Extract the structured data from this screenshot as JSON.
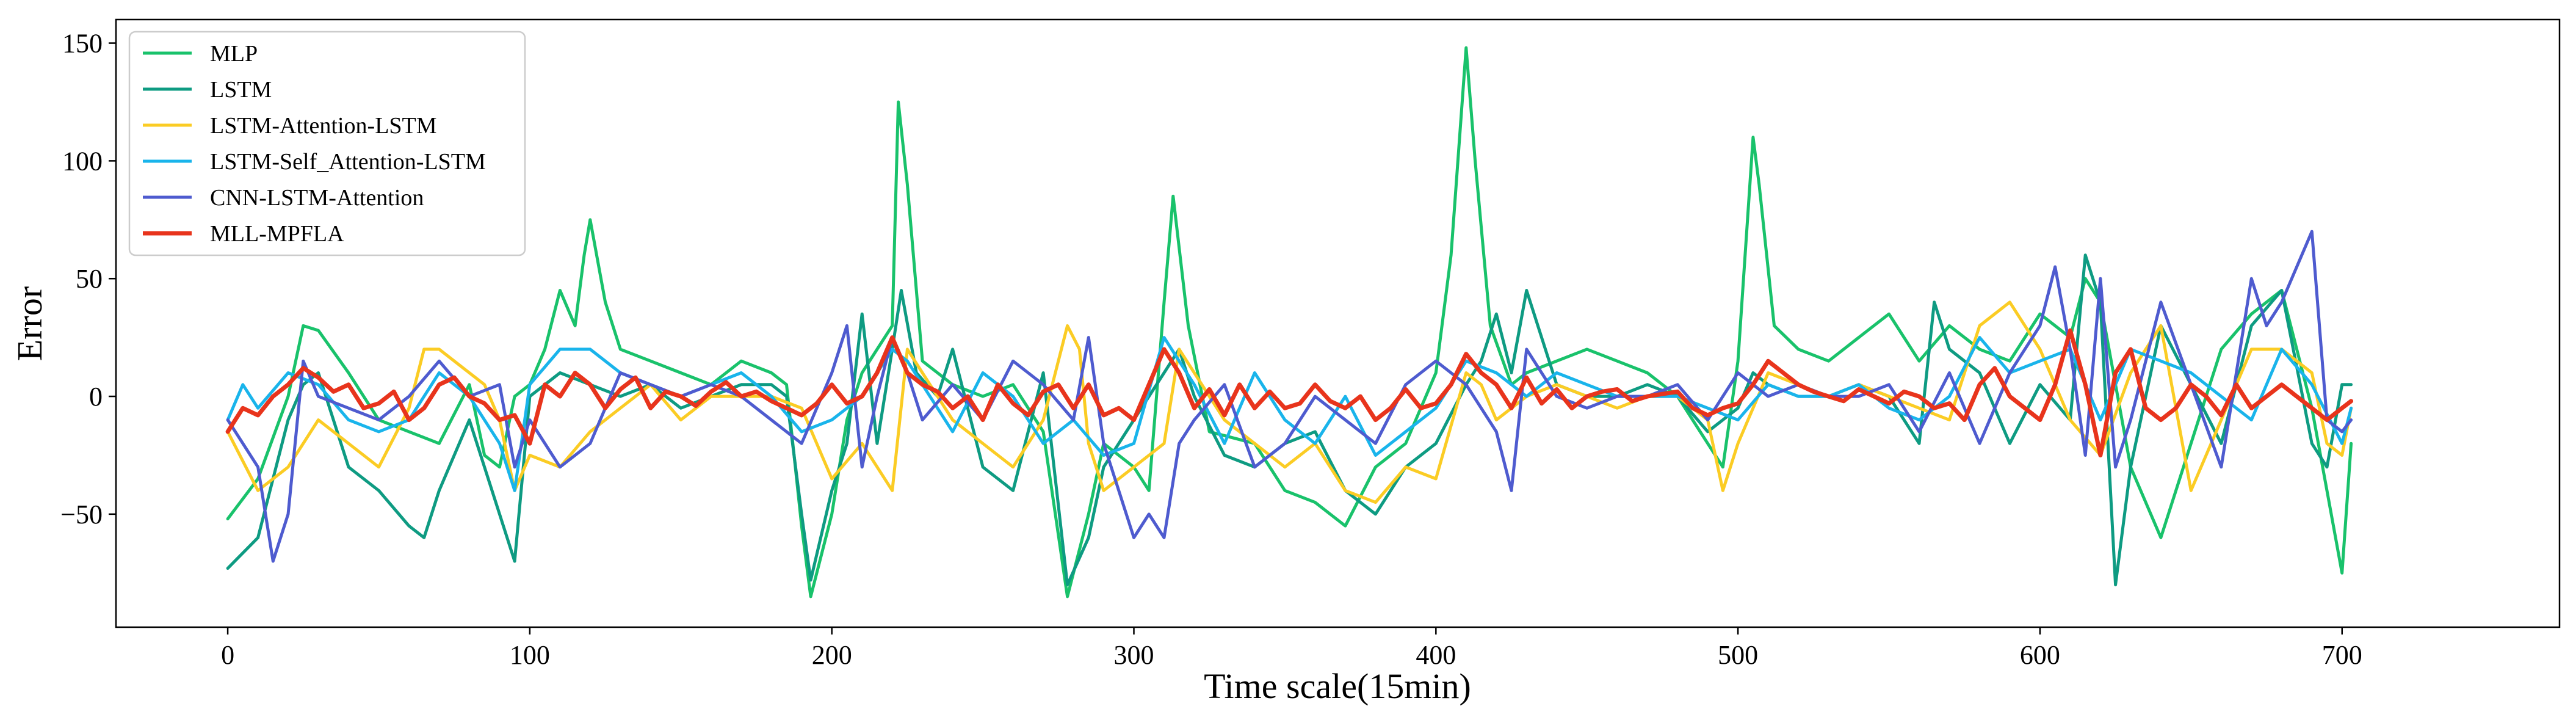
{
  "chart_data": {
    "type": "line",
    "title": "",
    "xlabel": "Time scale(15min)",
    "ylabel": "Error",
    "xlim": [
      -37,
      772
    ],
    "ylim": [
      -98,
      160
    ],
    "xticks": [
      0,
      100,
      200,
      300,
      400,
      500,
      600,
      700
    ],
    "yticks": [
      -50,
      0,
      50,
      100,
      150
    ],
    "ytick_labels": [
      "−50",
      "0",
      "50",
      "100",
      "150"
    ],
    "grid": false,
    "legend_position": "top-left",
    "series": [
      {
        "name": "MLP",
        "color": "#19c26b",
        "x": [
          0,
          10,
          20,
          25,
          30,
          40,
          50,
          60,
          70,
          80,
          85,
          90,
          95,
          100,
          105,
          110,
          115,
          118,
          120,
          125,
          130,
          140,
          150,
          160,
          170,
          180,
          185,
          190,
          193,
          200,
          205,
          210,
          215,
          220,
          222,
          225,
          230,
          240,
          250,
          260,
          270,
          278,
          285,
          290,
          300,
          305,
          310,
          313,
          318,
          325,
          340,
          350,
          360,
          370,
          380,
          390,
          400,
          405,
          410,
          413,
          418,
          425,
          430,
          440,
          450,
          460,
          470,
          480,
          490,
          495,
          500,
          505,
          507,
          512,
          520,
          530,
          540,
          550,
          560,
          570,
          580,
          590,
          600,
          610,
          615,
          620,
          630,
          640,
          650,
          660,
          670,
          680,
          690,
          695,
          700,
          703
        ],
        "values": [
          -52,
          -35,
          0,
          30,
          28,
          10,
          -10,
          -15,
          -20,
          5,
          -25,
          -30,
          0,
          5,
          20,
          45,
          30,
          60,
          75,
          40,
          20,
          15,
          10,
          5,
          15,
          10,
          5,
          -55,
          -85,
          -50,
          -10,
          10,
          20,
          30,
          125,
          90,
          15,
          5,
          0,
          5,
          -15,
          -85,
          -50,
          -20,
          -30,
          -40,
          40,
          85,
          30,
          -15,
          -20,
          -40,
          -45,
          -55,
          -30,
          -20,
          10,
          60,
          148,
          100,
          30,
          5,
          10,
          15,
          20,
          15,
          10,
          0,
          -20,
          -30,
          15,
          110,
          90,
          30,
          20,
          15,
          25,
          35,
          15,
          30,
          20,
          15,
          35,
          25,
          50,
          40,
          -30,
          -60,
          -20,
          20,
          35,
          45,
          -5,
          -40,
          -75,
          -20
        ]
      },
      {
        "name": "LSTM",
        "color": "#0e9b82",
        "x": [
          0,
          10,
          20,
          25,
          30,
          40,
          50,
          60,
          65,
          70,
          80,
          90,
          95,
          100,
          110,
          120,
          130,
          140,
          150,
          160,
          170,
          180,
          185,
          190,
          193,
          200,
          205,
          210,
          215,
          220,
          223,
          228,
          235,
          240,
          250,
          260,
          270,
          278,
          285,
          290,
          300,
          310,
          315,
          320,
          330,
          340,
          350,
          360,
          370,
          380,
          390,
          400,
          410,
          415,
          420,
          425,
          430,
          440,
          450,
          460,
          470,
          480,
          490,
          500,
          505,
          510,
          520,
          530,
          540,
          550,
          560,
          565,
          570,
          580,
          590,
          600,
          610,
          615,
          620,
          625,
          630,
          640,
          650,
          660,
          670,
          680,
          690,
          695,
          700,
          703
        ],
        "values": [
          -73,
          -60,
          -10,
          5,
          10,
          -30,
          -40,
          -55,
          -60,
          -40,
          -10,
          -50,
          -70,
          0,
          10,
          5,
          0,
          5,
          -5,
          0,
          5,
          5,
          0,
          -50,
          -78,
          -40,
          -20,
          35,
          -20,
          20,
          45,
          10,
          0,
          20,
          -30,
          -40,
          10,
          -80,
          -60,
          -30,
          -10,
          10,
          20,
          0,
          -25,
          -30,
          -20,
          -15,
          -40,
          -50,
          -30,
          -20,
          5,
          15,
          35,
          10,
          45,
          5,
          0,
          0,
          5,
          0,
          -15,
          -5,
          10,
          5,
          0,
          0,
          5,
          0,
          -20,
          40,
          20,
          10,
          -20,
          5,
          -10,
          60,
          40,
          -80,
          -30,
          30,
          5,
          -20,
          30,
          45,
          -20,
          -30,
          5,
          5
        ]
      },
      {
        "name": "LSTM-Attention-LSTM",
        "color": "#fbcc24",
        "x": [
          0,
          10,
          20,
          30,
          40,
          50,
          60,
          65,
          70,
          80,
          85,
          90,
          95,
          100,
          110,
          120,
          130,
          140,
          150,
          160,
          170,
          180,
          190,
          200,
          210,
          220,
          225,
          230,
          240,
          250,
          260,
          270,
          278,
          282,
          285,
          290,
          300,
          310,
          315,
          320,
          330,
          340,
          350,
          360,
          370,
          380,
          390,
          400,
          410,
          415,
          420,
          430,
          440,
          450,
          460,
          470,
          480,
          490,
          495,
          500,
          510,
          520,
          530,
          540,
          550,
          560,
          570,
          580,
          590,
          600,
          610,
          620,
          630,
          640,
          650,
          660,
          670,
          680,
          690,
          695,
          700,
          703
        ],
        "values": [
          -15,
          -40,
          -30,
          -10,
          -20,
          -30,
          -5,
          20,
          20,
          10,
          5,
          -10,
          -40,
          -25,
          -30,
          -15,
          -5,
          5,
          -10,
          0,
          0,
          0,
          -5,
          -35,
          -20,
          -40,
          20,
          10,
          -10,
          -20,
          -30,
          -10,
          30,
          20,
          -20,
          -40,
          -30,
          -20,
          20,
          10,
          -10,
          -20,
          -30,
          -20,
          -40,
          -45,
          -30,
          -35,
          10,
          5,
          -10,
          0,
          5,
          0,
          -5,
          0,
          0,
          -10,
          -40,
          -20,
          10,
          5,
          0,
          5,
          0,
          -5,
          -10,
          30,
          40,
          20,
          -10,
          -25,
          10,
          30,
          -40,
          -10,
          20,
          20,
          10,
          -20,
          -25,
          -5
        ]
      },
      {
        "name": "LSTM-Self_Attention-LSTM",
        "color": "#19b4eb",
        "x": [
          0,
          5,
          10,
          20,
          30,
          40,
          50,
          60,
          70,
          80,
          90,
          95,
          100,
          110,
          120,
          130,
          140,
          150,
          160,
          170,
          180,
          190,
          200,
          210,
          220,
          225,
          230,
          240,
          250,
          260,
          270,
          280,
          290,
          300,
          310,
          315,
          320,
          330,
          340,
          350,
          360,
          370,
          380,
          390,
          400,
          410,
          420,
          430,
          440,
          450,
          460,
          470,
          480,
          490,
          500,
          510,
          520,
          530,
          540,
          550,
          560,
          570,
          580,
          590,
          600,
          610,
          620,
          630,
          640,
          650,
          660,
          670,
          680,
          690,
          700,
          703
        ],
        "values": [
          -10,
          5,
          -5,
          10,
          5,
          -10,
          -15,
          -10,
          10,
          0,
          -20,
          -40,
          5,
          20,
          20,
          10,
          5,
          0,
          5,
          10,
          0,
          -15,
          -10,
          0,
          20,
          15,
          5,
          -15,
          10,
          0,
          -20,
          -10,
          -25,
          -20,
          25,
          15,
          5,
          -20,
          10,
          -10,
          -20,
          0,
          -25,
          -15,
          -5,
          15,
          10,
          0,
          10,
          5,
          0,
          0,
          0,
          -5,
          -10,
          5,
          0,
          0,
          5,
          -5,
          -10,
          0,
          25,
          10,
          15,
          20,
          -10,
          20,
          15,
          10,
          0,
          -10,
          20,
          5,
          -20,
          -5
        ]
      },
      {
        "name": "CNN-LSTM-Attention",
        "color": "#4e5bcf",
        "x": [
          0,
          10,
          15,
          20,
          25,
          30,
          40,
          50,
          60,
          70,
          80,
          90,
          95,
          100,
          110,
          120,
          130,
          140,
          150,
          160,
          170,
          180,
          190,
          200,
          205,
          210,
          215,
          220,
          225,
          230,
          240,
          250,
          260,
          270,
          280,
          285,
          290,
          300,
          305,
          310,
          315,
          320,
          330,
          340,
          350,
          360,
          370,
          380,
          390,
          400,
          410,
          420,
          425,
          430,
          440,
          450,
          460,
          470,
          480,
          490,
          500,
          510,
          520,
          530,
          540,
          550,
          560,
          570,
          580,
          590,
          600,
          605,
          610,
          615,
          620,
          625,
          630,
          640,
          650,
          660,
          670,
          675,
          680,
          690,
          695,
          700,
          703
        ],
        "values": [
          -10,
          -30,
          -70,
          -50,
          15,
          0,
          -5,
          -10,
          0,
          15,
          0,
          5,
          -30,
          -10,
          -30,
          -20,
          10,
          5,
          0,
          5,
          0,
          -10,
          -20,
          10,
          30,
          -30,
          0,
          25,
          10,
          -10,
          5,
          -10,
          15,
          5,
          -10,
          25,
          -20,
          -60,
          -50,
          -60,
          -20,
          -10,
          5,
          -30,
          -20,
          0,
          -10,
          -20,
          5,
          15,
          5,
          -15,
          -40,
          20,
          0,
          -5,
          0,
          0,
          5,
          -10,
          10,
          0,
          5,
          0,
          0,
          5,
          -15,
          10,
          -20,
          10,
          30,
          55,
          20,
          -25,
          50,
          -30,
          -10,
          40,
          5,
          -30,
          50,
          30,
          40,
          70,
          -10,
          -15,
          -10
        ]
      },
      {
        "name": "MLL-MPFLA",
        "color": "#e8341c",
        "x": [
          0,
          5,
          10,
          15,
          20,
          25,
          30,
          35,
          40,
          45,
          50,
          55,
          60,
          65,
          70,
          75,
          80,
          85,
          90,
          95,
          100,
          105,
          110,
          115,
          120,
          125,
          130,
          135,
          140,
          145,
          150,
          155,
          160,
          165,
          170,
          175,
          180,
          185,
          190,
          195,
          200,
          205,
          210,
          215,
          220,
          225,
          230,
          235,
          240,
          245,
          250,
          255,
          260,
          265,
          270,
          275,
          280,
          285,
          290,
          295,
          300,
          305,
          310,
          315,
          320,
          325,
          330,
          335,
          340,
          345,
          350,
          355,
          360,
          365,
          370,
          375,
          380,
          385,
          390,
          395,
          400,
          405,
          410,
          415,
          420,
          425,
          430,
          435,
          440,
          445,
          450,
          455,
          460,
          465,
          470,
          475,
          480,
          485,
          490,
          495,
          500,
          505,
          510,
          515,
          520,
          525,
          530,
          535,
          540,
          545,
          550,
          555,
          560,
          565,
          570,
          575,
          580,
          585,
          590,
          595,
          600,
          605,
          610,
          615,
          620,
          625,
          630,
          635,
          640,
          645,
          650,
          655,
          660,
          665,
          670,
          675,
          680,
          685,
          690,
          695,
          700,
          703
        ],
        "values": [
          -15,
          -5,
          -8,
          0,
          5,
          12,
          8,
          2,
          5,
          -5,
          -3,
          2,
          -10,
          -5,
          5,
          8,
          0,
          -3,
          -10,
          -8,
          -20,
          5,
          0,
          10,
          5,
          -5,
          3,
          8,
          -5,
          2,
          0,
          -4,
          2,
          6,
          0,
          2,
          -2,
          -5,
          -8,
          -3,
          5,
          -3,
          0,
          10,
          25,
          10,
          5,
          2,
          -5,
          0,
          -10,
          5,
          -3,
          -8,
          2,
          5,
          -5,
          5,
          -8,
          -5,
          -10,
          5,
          20,
          10,
          -5,
          3,
          -8,
          5,
          -5,
          2,
          -5,
          -3,
          5,
          -2,
          -5,
          0,
          -10,
          -5,
          3,
          -5,
          -3,
          5,
          18,
          10,
          5,
          -5,
          8,
          -3,
          3,
          -5,
          0,
          2,
          3,
          -2,
          0,
          1,
          2,
          -5,
          -8,
          -5,
          -3,
          5,
          15,
          10,
          5,
          2,
          0,
          -2,
          3,
          0,
          -3,
          2,
          0,
          -5,
          -3,
          -10,
          5,
          12,
          0,
          -5,
          -10,
          5,
          28,
          5,
          -25,
          10,
          20,
          -5,
          -10,
          -5,
          5,
          0,
          -8,
          5,
          -5,
          0,
          5,
          0,
          -5,
          -10,
          -5,
          -2
        ]
      }
    ]
  }
}
